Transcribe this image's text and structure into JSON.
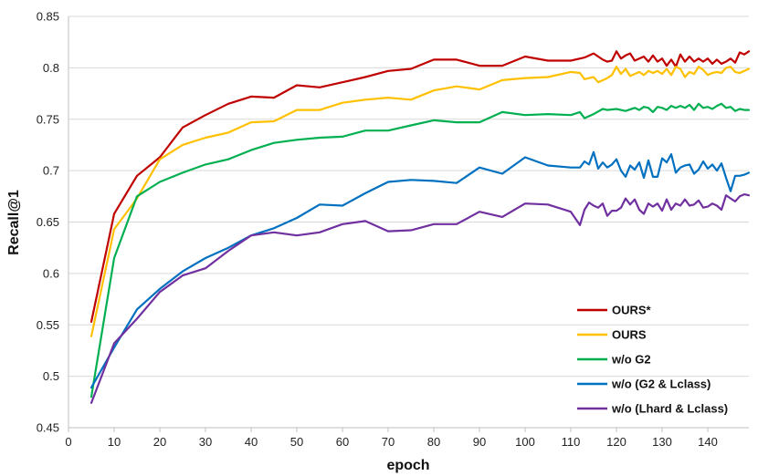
{
  "chart_data": {
    "type": "line",
    "title": "",
    "xlabel": "epoch",
    "ylabel": "Recall@1",
    "xlim": [
      0,
      149
    ],
    "ylim": [
      0.45,
      0.85
    ],
    "x_ticks": [
      0,
      10,
      20,
      30,
      40,
      50,
      60,
      70,
      80,
      90,
      100,
      110,
      120,
      130,
      140
    ],
    "y_ticks": [
      "0.45",
      "0.5",
      "0.55",
      "0.6",
      "0.65",
      "0.7",
      "0.75",
      "0.8",
      "0.85"
    ],
    "grid": "horizontal",
    "legend_position": "bottom-right",
    "series": [
      {
        "name": "OURS*",
        "color": "#c00000",
        "points": [
          [
            5,
            0.553
          ],
          [
            10,
            0.658
          ],
          [
            15,
            0.695
          ],
          [
            20,
            0.713
          ],
          [
            25,
            0.742
          ],
          [
            30,
            0.754
          ],
          [
            35,
            0.765
          ],
          [
            40,
            0.772
          ],
          [
            45,
            0.771
          ],
          [
            50,
            0.783
          ],
          [
            55,
            0.781
          ],
          [
            60,
            0.786
          ],
          [
            65,
            0.791
          ],
          [
            70,
            0.797
          ],
          [
            75,
            0.799
          ],
          [
            80,
            0.808
          ],
          [
            85,
            0.808
          ],
          [
            90,
            0.802
          ],
          [
            95,
            0.802
          ],
          [
            100,
            0.811
          ],
          [
            105,
            0.807
          ],
          [
            110,
            0.807
          ],
          [
            113,
            0.81
          ],
          [
            115,
            0.814
          ],
          [
            117,
            0.808
          ],
          [
            118,
            0.806
          ],
          [
            119,
            0.807
          ],
          [
            120,
            0.816
          ],
          [
            121,
            0.809
          ],
          [
            122,
            0.812
          ],
          [
            123,
            0.814
          ],
          [
            124,
            0.807
          ],
          [
            125,
            0.809
          ],
          [
            126,
            0.811
          ],
          [
            127,
            0.806
          ],
          [
            128,
            0.812
          ],
          [
            129,
            0.806
          ],
          [
            130,
            0.809
          ],
          [
            131,
            0.802
          ],
          [
            132,
            0.808
          ],
          [
            133,
            0.801
          ],
          [
            134,
            0.813
          ],
          [
            135,
            0.806
          ],
          [
            136,
            0.811
          ],
          [
            137,
            0.806
          ],
          [
            138,
            0.809
          ],
          [
            139,
            0.806
          ],
          [
            140,
            0.809
          ],
          [
            141,
            0.804
          ],
          [
            142,
            0.808
          ],
          [
            143,
            0.804
          ],
          [
            144,
            0.806
          ],
          [
            145,
            0.809
          ],
          [
            146,
            0.805
          ],
          [
            147,
            0.815
          ],
          [
            148,
            0.813
          ],
          [
            149,
            0.816
          ]
        ]
      },
      {
        "name": "OURS",
        "color": "#ffc000",
        "points": [
          [
            5,
            0.539
          ],
          [
            10,
            0.643
          ],
          [
            15,
            0.673
          ],
          [
            20,
            0.711
          ],
          [
            25,
            0.725
          ],
          [
            30,
            0.732
          ],
          [
            35,
            0.737
          ],
          [
            40,
            0.747
          ],
          [
            45,
            0.748
          ],
          [
            50,
            0.759
          ],
          [
            55,
            0.759
          ],
          [
            60,
            0.766
          ],
          [
            65,
            0.769
          ],
          [
            70,
            0.771
          ],
          [
            75,
            0.769
          ],
          [
            80,
            0.778
          ],
          [
            85,
            0.782
          ],
          [
            90,
            0.779
          ],
          [
            95,
            0.788
          ],
          [
            100,
            0.79
          ],
          [
            105,
            0.791
          ],
          [
            110,
            0.796
          ],
          [
            112,
            0.795
          ],
          [
            113,
            0.789
          ],
          [
            115,
            0.791
          ],
          [
            116,
            0.786
          ],
          [
            118,
            0.79
          ],
          [
            119,
            0.793
          ],
          [
            120,
            0.801
          ],
          [
            121,
            0.794
          ],
          [
            122,
            0.799
          ],
          [
            123,
            0.792
          ],
          [
            125,
            0.796
          ],
          [
            126,
            0.793
          ],
          [
            127,
            0.797
          ],
          [
            128,
            0.795
          ],
          [
            129,
            0.797
          ],
          [
            130,
            0.794
          ],
          [
            131,
            0.799
          ],
          [
            132,
            0.793
          ],
          [
            133,
            0.801
          ],
          [
            134,
            0.799
          ],
          [
            135,
            0.791
          ],
          [
            136,
            0.796
          ],
          [
            137,
            0.794
          ],
          [
            138,
            0.801
          ],
          [
            139,
            0.798
          ],
          [
            140,
            0.793
          ],
          [
            141,
            0.795
          ],
          [
            142,
            0.796
          ],
          [
            143,
            0.795
          ],
          [
            144,
            0.8
          ],
          [
            145,
            0.801
          ],
          [
            146,
            0.796
          ],
          [
            147,
            0.795
          ],
          [
            148,
            0.797
          ],
          [
            149,
            0.799
          ]
        ]
      },
      {
        "name": "w/o G2",
        "color": "#00b050",
        "points": [
          [
            5,
            0.48
          ],
          [
            10,
            0.615
          ],
          [
            15,
            0.675
          ],
          [
            20,
            0.689
          ],
          [
            25,
            0.698
          ],
          [
            30,
            0.706
          ],
          [
            35,
            0.711
          ],
          [
            40,
            0.72
          ],
          [
            45,
            0.727
          ],
          [
            50,
            0.73
          ],
          [
            55,
            0.732
          ],
          [
            60,
            0.733
          ],
          [
            65,
            0.739
          ],
          [
            70,
            0.739
          ],
          [
            75,
            0.744
          ],
          [
            80,
            0.749
          ],
          [
            85,
            0.747
          ],
          [
            90,
            0.747
          ],
          [
            95,
            0.757
          ],
          [
            100,
            0.754
          ],
          [
            105,
            0.755
          ],
          [
            110,
            0.754
          ],
          [
            112,
            0.757
          ],
          [
            113,
            0.751
          ],
          [
            115,
            0.755
          ],
          [
            117,
            0.76
          ],
          [
            118,
            0.759
          ],
          [
            120,
            0.76
          ],
          [
            122,
            0.758
          ],
          [
            124,
            0.761
          ],
          [
            125,
            0.759
          ],
          [
            126,
            0.762
          ],
          [
            127,
            0.761
          ],
          [
            128,
            0.757
          ],
          [
            129,
            0.762
          ],
          [
            130,
            0.761
          ],
          [
            131,
            0.759
          ],
          [
            132,
            0.763
          ],
          [
            133,
            0.761
          ],
          [
            134,
            0.763
          ],
          [
            135,
            0.761
          ],
          [
            136,
            0.764
          ],
          [
            137,
            0.759
          ],
          [
            138,
            0.765
          ],
          [
            139,
            0.761
          ],
          [
            140,
            0.762
          ],
          [
            141,
            0.76
          ],
          [
            142,
            0.763
          ],
          [
            143,
            0.765
          ],
          [
            144,
            0.761
          ],
          [
            145,
            0.762
          ],
          [
            146,
            0.758
          ],
          [
            147,
            0.76
          ],
          [
            148,
            0.759
          ],
          [
            149,
            0.759
          ]
        ]
      },
      {
        "name": "w/o (G2 & Lclass)",
        "color": "#0070c0",
        "points": [
          [
            5,
            0.489
          ],
          [
            10,
            0.528
          ],
          [
            15,
            0.565
          ],
          [
            20,
            0.585
          ],
          [
            25,
            0.602
          ],
          [
            30,
            0.615
          ],
          [
            35,
            0.625
          ],
          [
            40,
            0.637
          ],
          [
            45,
            0.644
          ],
          [
            50,
            0.654
          ],
          [
            55,
            0.667
          ],
          [
            60,
            0.666
          ],
          [
            65,
            0.678
          ],
          [
            70,
            0.689
          ],
          [
            75,
            0.691
          ],
          [
            80,
            0.69
          ],
          [
            85,
            0.688
          ],
          [
            90,
            0.703
          ],
          [
            95,
            0.697
          ],
          [
            100,
            0.713
          ],
          [
            105,
            0.705
          ],
          [
            110,
            0.703
          ],
          [
            112,
            0.703
          ],
          [
            113,
            0.709
          ],
          [
            114,
            0.706
          ],
          [
            115,
            0.718
          ],
          [
            116,
            0.702
          ],
          [
            117,
            0.708
          ],
          [
            118,
            0.703
          ],
          [
            119,
            0.706
          ],
          [
            120,
            0.711
          ],
          [
            121,
            0.7
          ],
          [
            122,
            0.694
          ],
          [
            123,
            0.705
          ],
          [
            124,
            0.701
          ],
          [
            125,
            0.708
          ],
          [
            126,
            0.693
          ],
          [
            127,
            0.71
          ],
          [
            128,
            0.694
          ],
          [
            129,
            0.694
          ],
          [
            130,
            0.712
          ],
          [
            131,
            0.708
          ],
          [
            132,
            0.716
          ],
          [
            133,
            0.698
          ],
          [
            134,
            0.703
          ],
          [
            135,
            0.705
          ],
          [
            136,
            0.706
          ],
          [
            137,
            0.697
          ],
          [
            138,
            0.701
          ],
          [
            139,
            0.709
          ],
          [
            140,
            0.702
          ],
          [
            141,
            0.706
          ],
          [
            142,
            0.7
          ],
          [
            143,
            0.707
          ],
          [
            144,
            0.693
          ],
          [
            145,
            0.68
          ],
          [
            146,
            0.695
          ],
          [
            147,
            0.695
          ],
          [
            148,
            0.696
          ],
          [
            149,
            0.698
          ]
        ]
      },
      {
        "name": "w/o (Lhard & Lclass)",
        "color": "#7030a0",
        "points": [
          [
            5,
            0.474
          ],
          [
            10,
            0.532
          ],
          [
            15,
            0.556
          ],
          [
            20,
            0.582
          ],
          [
            25,
            0.598
          ],
          [
            30,
            0.605
          ],
          [
            35,
            0.622
          ],
          [
            40,
            0.637
          ],
          [
            45,
            0.64
          ],
          [
            50,
            0.637
          ],
          [
            55,
            0.64
          ],
          [
            60,
            0.648
          ],
          [
            65,
            0.651
          ],
          [
            70,
            0.641
          ],
          [
            75,
            0.642
          ],
          [
            80,
            0.648
          ],
          [
            85,
            0.648
          ],
          [
            90,
            0.66
          ],
          [
            95,
            0.655
          ],
          [
            100,
            0.668
          ],
          [
            105,
            0.667
          ],
          [
            110,
            0.66
          ],
          [
            112,
            0.647
          ],
          [
            113,
            0.662
          ],
          [
            114,
            0.669
          ],
          [
            115,
            0.666
          ],
          [
            116,
            0.664
          ],
          [
            117,
            0.668
          ],
          [
            118,
            0.656
          ],
          [
            119,
            0.661
          ],
          [
            120,
            0.661
          ],
          [
            121,
            0.664
          ],
          [
            122,
            0.673
          ],
          [
            123,
            0.667
          ],
          [
            124,
            0.672
          ],
          [
            125,
            0.662
          ],
          [
            126,
            0.658
          ],
          [
            127,
            0.668
          ],
          [
            128,
            0.665
          ],
          [
            129,
            0.668
          ],
          [
            130,
            0.661
          ],
          [
            131,
            0.672
          ],
          [
            132,
            0.662
          ],
          [
            133,
            0.668
          ],
          [
            134,
            0.666
          ],
          [
            135,
            0.672
          ],
          [
            136,
            0.666
          ],
          [
            137,
            0.667
          ],
          [
            138,
            0.671
          ],
          [
            139,
            0.664
          ],
          [
            140,
            0.665
          ],
          [
            141,
            0.668
          ],
          [
            142,
            0.666
          ],
          [
            143,
            0.662
          ],
          [
            144,
            0.676
          ],
          [
            145,
            0.673
          ],
          [
            146,
            0.67
          ],
          [
            147,
            0.675
          ],
          [
            148,
            0.677
          ],
          [
            149,
            0.676
          ]
        ]
      }
    ]
  }
}
